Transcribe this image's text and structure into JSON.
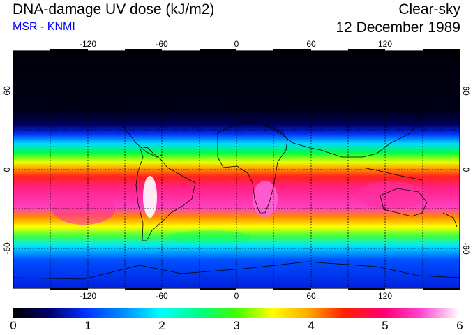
{
  "header": {
    "title": "DNA-damage UV dose (kJ/m2)",
    "source": "MSR - KNMI",
    "mode": "Clear-sky",
    "date": "12 December 1989"
  },
  "map": {
    "lon_ticks": [
      "-120",
      "-60",
      "0",
      "60",
      "120"
    ],
    "lat_ticks": [
      "60",
      "0",
      "-60"
    ]
  },
  "colorbar": {
    "labels": [
      "0",
      "1",
      "2",
      "3",
      "4",
      "5",
      "6"
    ],
    "min": 0,
    "max": 6
  },
  "colors": {
    "subtitle": "#0000ff"
  }
}
